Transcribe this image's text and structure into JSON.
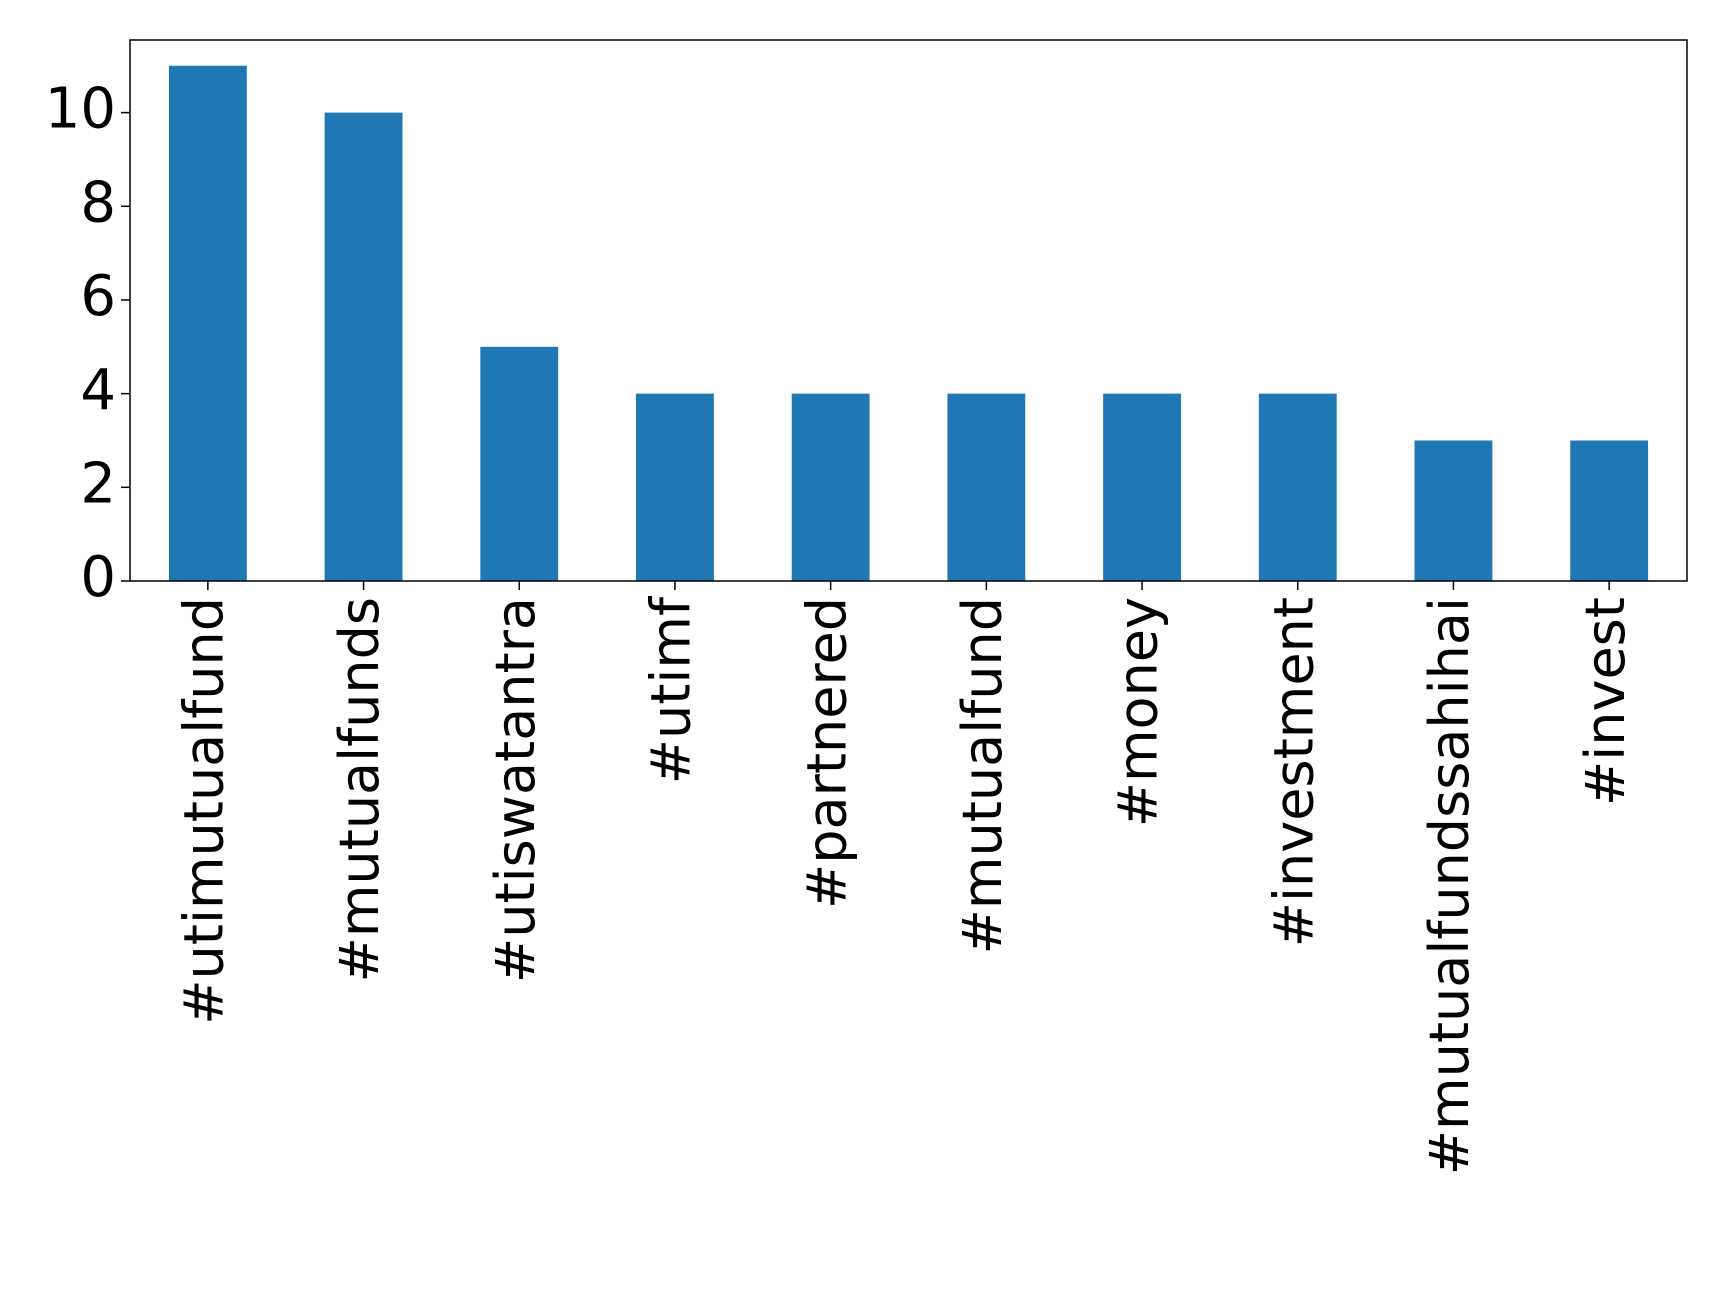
{
  "chart_data": {
    "type": "bar",
    "categories": [
      "#utimutualfund",
      "#mutualfunds",
      "#utiswatantra",
      "#utimf",
      "#partnered",
      "#mutualfund",
      "#money",
      "#investment",
      "#mutualfundssahihai",
      "#invest"
    ],
    "values": [
      11,
      10,
      5,
      4,
      4,
      4,
      4,
      4,
      3,
      3
    ],
    "color": "#1f77b4",
    "ylim": [
      0,
      11.55
    ],
    "yticks": [
      0,
      2,
      4,
      6,
      8,
      10
    ],
    "grid": false
  }
}
